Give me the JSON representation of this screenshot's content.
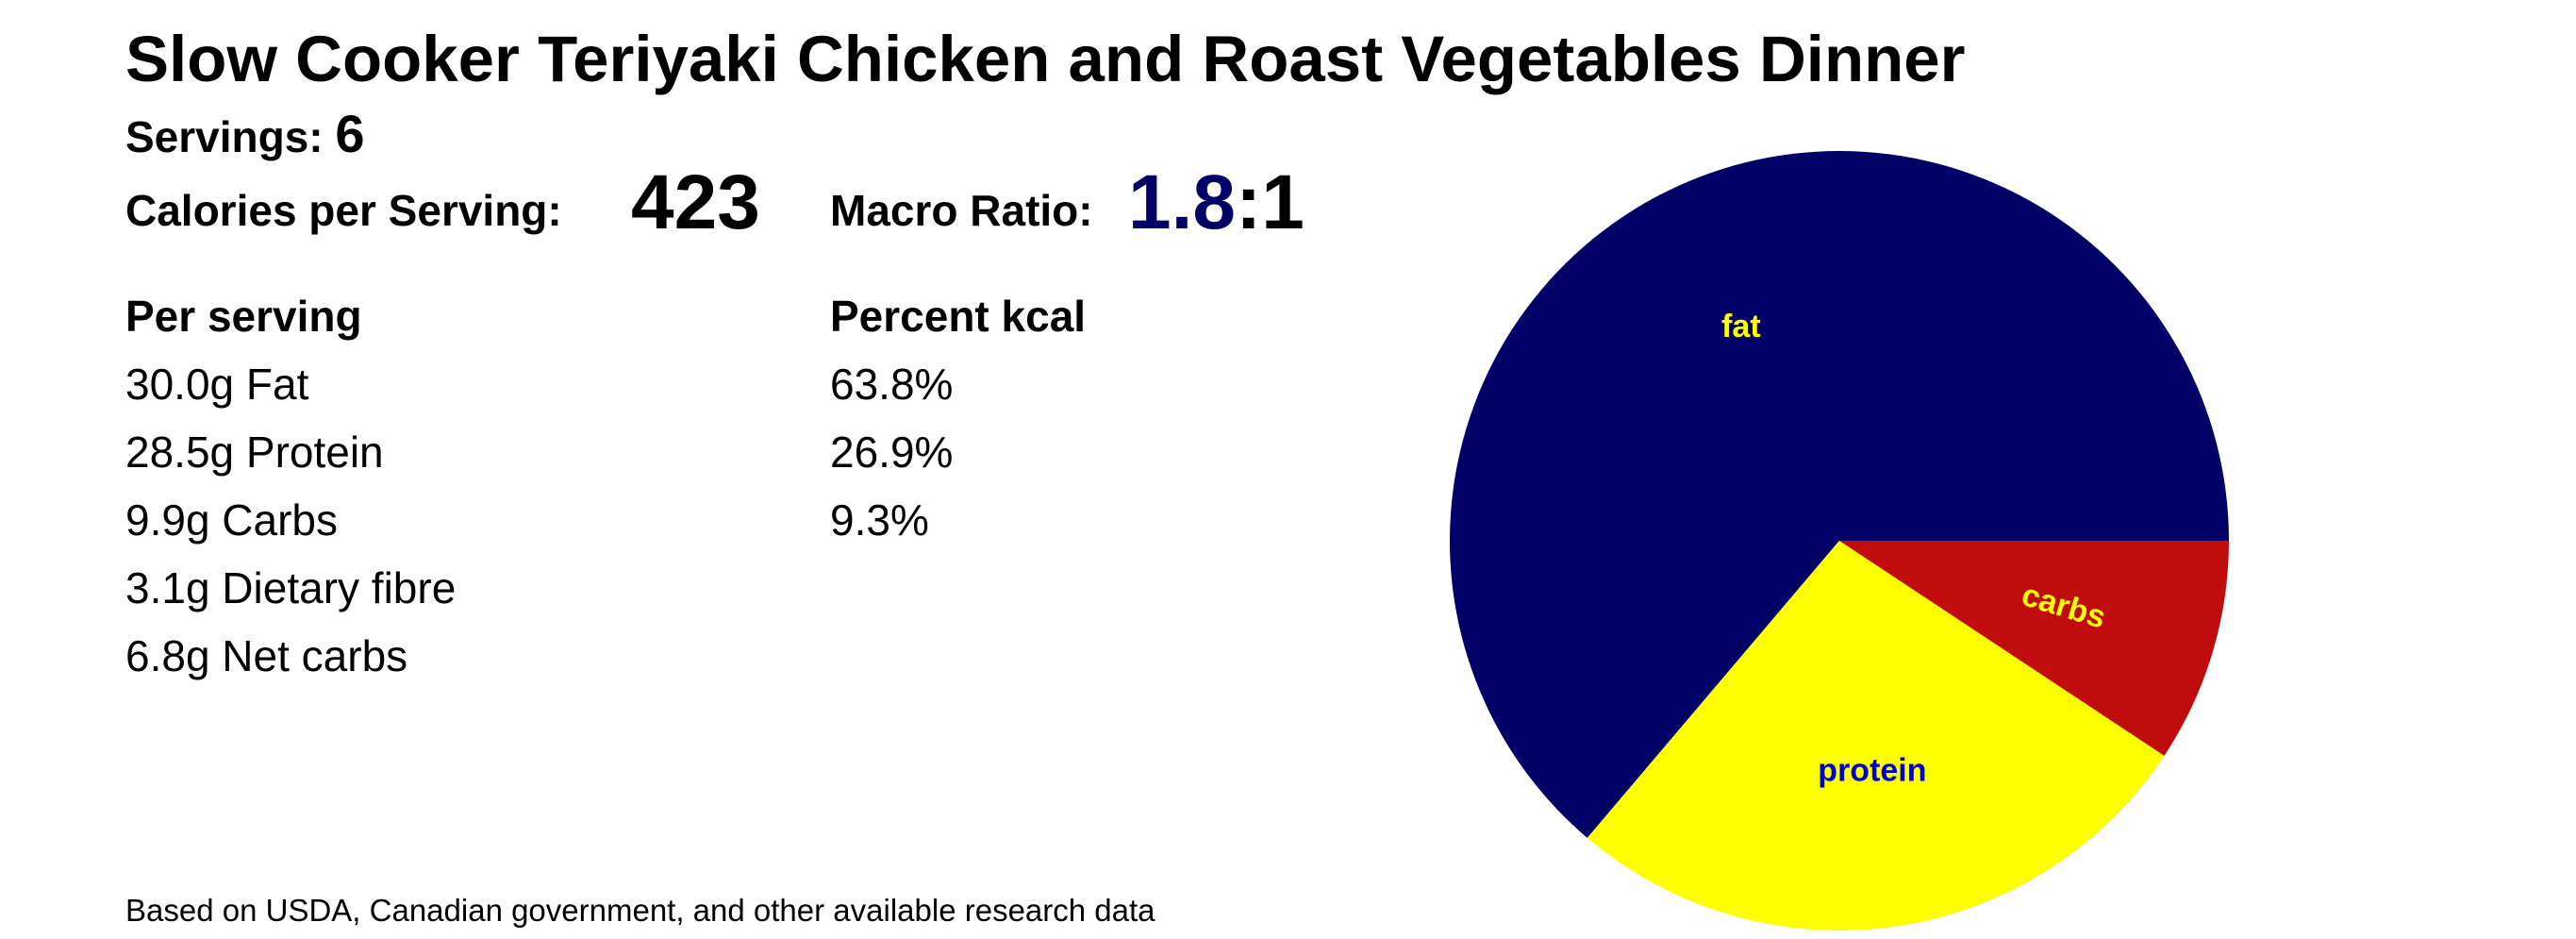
{
  "title": "Slow Cooker Teriyaki Chicken and Roast Vegetables Dinner",
  "servings": {
    "label": "Servings:",
    "value": "6"
  },
  "calories": {
    "label": "Calories per Serving:",
    "value": "423"
  },
  "macro_ratio": {
    "label": "Macro Ratio:",
    "value": "1.8",
    "suffix": ":1"
  },
  "per_serving": {
    "header": "Per serving",
    "rows": [
      "30.0g Fat",
      "28.5g Protein",
      "9.9g Carbs",
      "3.1g Dietary fibre",
      "6.8g Net carbs"
    ]
  },
  "percent_kcal": {
    "header": "Percent kcal",
    "rows": [
      "63.8%",
      "26.9%",
      "9.3%"
    ]
  },
  "footnote": "Based on USDA, Canadian government, and other available research data",
  "chart_data": {
    "type": "pie",
    "title": "",
    "start": "3 o'clock",
    "direction": "counterclockwise",
    "legend": "none",
    "slices": [
      {
        "label": "fat",
        "value": 63.8,
        "color": "#000066",
        "label_color": "#ffff00"
      },
      {
        "label": "protein",
        "value": 26.9,
        "color": "#ffff00",
        "label_color": "#0000cc"
      },
      {
        "label": "carbs",
        "value": 9.3,
        "color": "#c00c0c",
        "label_color": "#ffff00"
      }
    ]
  }
}
